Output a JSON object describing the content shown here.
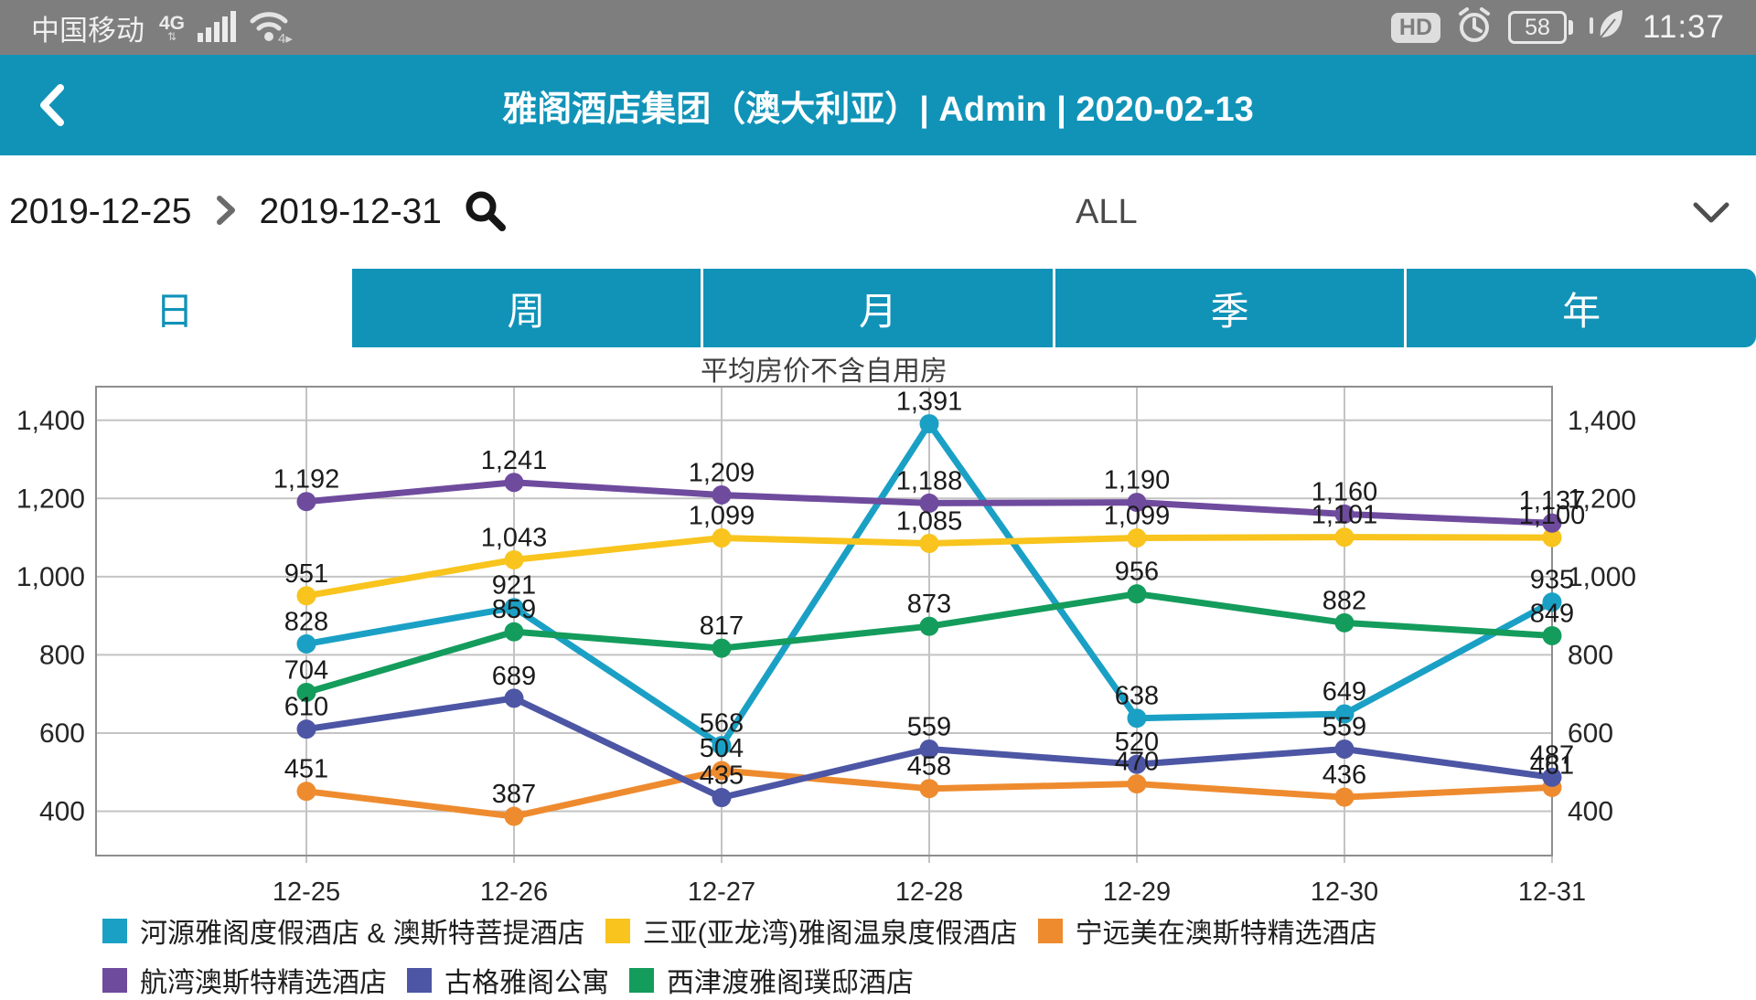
{
  "status_bar": {
    "carrier": "中国移动",
    "network": "4G",
    "hd_badge": "HD",
    "battery_percent": "58",
    "time": "11:37"
  },
  "header": {
    "title": "雅阁酒店集团（澳大利亚）| Admin | 2020-02-13"
  },
  "filters": {
    "start_date": "2019-12-25",
    "end_date": "2019-12-31",
    "scope_value": "ALL"
  },
  "tabs": {
    "items": [
      {
        "label": "日",
        "active": true
      },
      {
        "label": "周",
        "active": false
      },
      {
        "label": "月",
        "active": false
      },
      {
        "label": "季",
        "active": false
      },
      {
        "label": "年",
        "active": false
      }
    ]
  },
  "chart_data": {
    "type": "line",
    "title": "平均房价不含自用房",
    "categories": [
      "12-25",
      "12-26",
      "12-27",
      "12-28",
      "12-29",
      "12-30",
      "12-31"
    ],
    "series": [
      {
        "name": "河源雅阁度假酒店 & 澳斯特菩提酒店",
        "color": "#1BA0C5",
        "values": [
          828,
          921,
          568,
          1391,
          638,
          649,
          935
        ]
      },
      {
        "name": "三亚(亚龙湾)雅阁温泉度假酒店",
        "color": "#F8C41D",
        "values": [
          951,
          1043,
          1099,
          1085,
          1099,
          1101,
          1100
        ]
      },
      {
        "name": "宁远美在澳斯特精选酒店",
        "color": "#EE8B2F",
        "values": [
          451,
          387,
          504,
          458,
          470,
          436,
          461
        ]
      },
      {
        "name": "航湾澳斯特精选酒店",
        "color": "#6F4B9E",
        "values": [
          1192,
          1241,
          1209,
          1188,
          1190,
          1160,
          1137
        ]
      },
      {
        "name": "古格雅阁公寓",
        "color": "#4C56A4",
        "values": [
          610,
          689,
          435,
          559,
          520,
          559,
          487
        ]
      },
      {
        "name": "西津渡雅阁璞邸酒店",
        "color": "#149C5C",
        "values": [
          704,
          859,
          817,
          873,
          956,
          882,
          849
        ]
      }
    ],
    "y_axis": {
      "min": 400,
      "max": 1400,
      "step": 200,
      "tick_labels": [
        "400",
        "600",
        "800",
        "1,000",
        "1,200",
        "1,400"
      ],
      "dual_axis": true
    },
    "grid": true,
    "point_labels": true,
    "legend_position": "bottom"
  }
}
